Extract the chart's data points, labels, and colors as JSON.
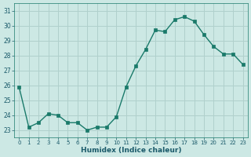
{
  "x": [
    0,
    1,
    2,
    3,
    4,
    5,
    6,
    7,
    8,
    9,
    10,
    11,
    12,
    13,
    14,
    15,
    16,
    17,
    18,
    19,
    20,
    21,
    22,
    23
  ],
  "y": [
    25.9,
    23.2,
    23.5,
    24.1,
    24.0,
    23.5,
    23.5,
    23.0,
    23.2,
    23.2,
    23.9,
    25.9,
    27.3,
    28.4,
    29.7,
    29.6,
    30.4,
    30.6,
    30.3,
    29.4,
    28.6,
    28.1,
    28.1,
    27.4
  ],
  "xlabel": "Humidex (Indice chaleur)",
  "ylim": [
    22.5,
    31.5
  ],
  "yticks": [
    23,
    24,
    25,
    26,
    27,
    28,
    29,
    30,
    31
  ],
  "xticks": [
    0,
    1,
    2,
    3,
    4,
    5,
    6,
    7,
    8,
    9,
    10,
    11,
    12,
    13,
    14,
    15,
    16,
    17,
    18,
    19,
    20,
    21,
    22,
    23
  ],
  "line_color": "#1a7a6a",
  "marker_color": "#1a7a6a",
  "bg_color": "#cce8e4",
  "grid_color": "#b0d0cc",
  "text_color": "#1a5a6a",
  "title": ""
}
